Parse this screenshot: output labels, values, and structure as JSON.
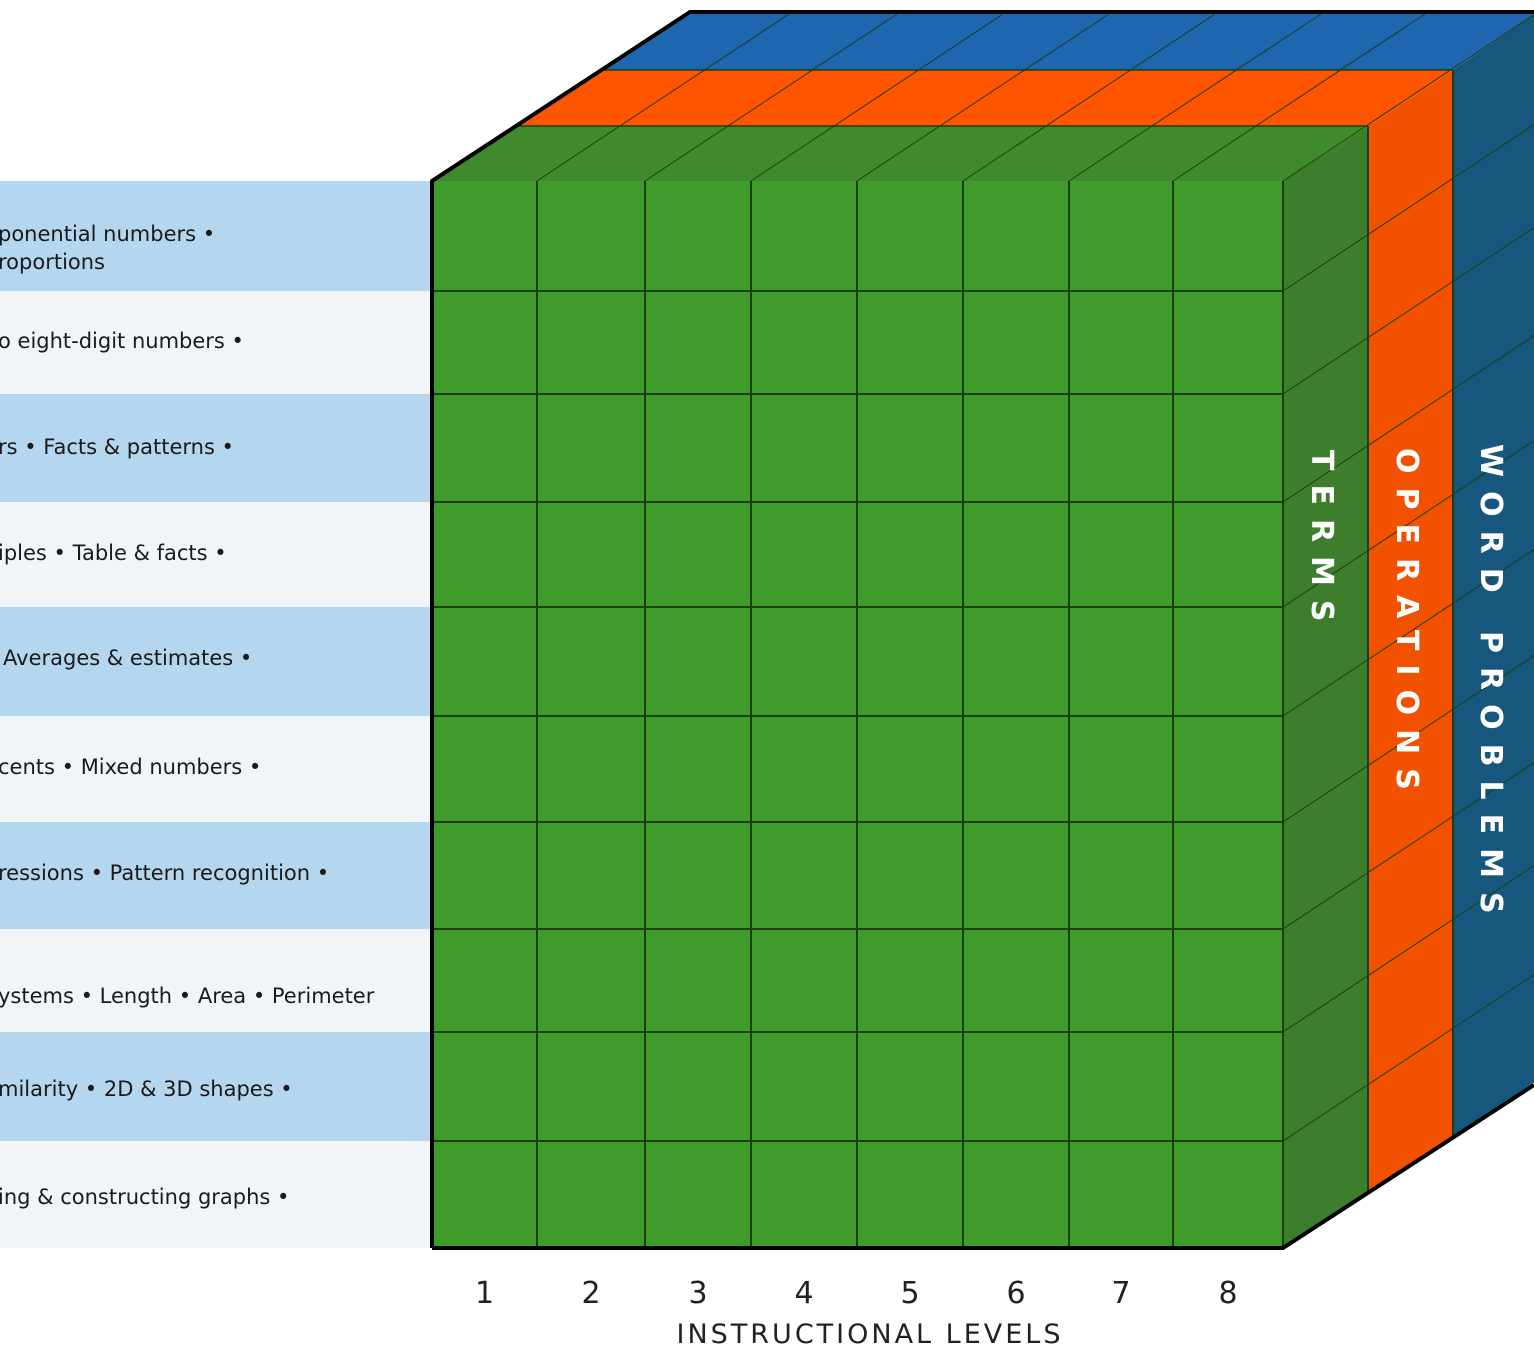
{
  "rows": [
    [
      "ponential numbers •",
      "roportions"
    ],
    [
      "o eight-digit numbers •"
    ],
    [
      "rs • Facts & patterns •"
    ],
    [
      "iples • Table & facts •"
    ],
    [
      "Averages & estimates •"
    ],
    [
      "cents • Mixed numbers •"
    ],
    [
      "ressions • Pattern recognition •"
    ],
    [
      "ystems • Length • Area • Perimeter"
    ],
    [
      "milarity • 2D & 3D shapes •"
    ],
    [
      "ing & constructing graphs •"
    ]
  ],
  "levels": [
    "1",
    "2",
    "3",
    "4",
    "5",
    "6",
    "7",
    "8"
  ],
  "axis_label": "INSTRUCTIONAL LEVELS",
  "layers": [
    "TERMS",
    "OPERATIONS",
    "WORD PROBLEMS"
  ]
}
